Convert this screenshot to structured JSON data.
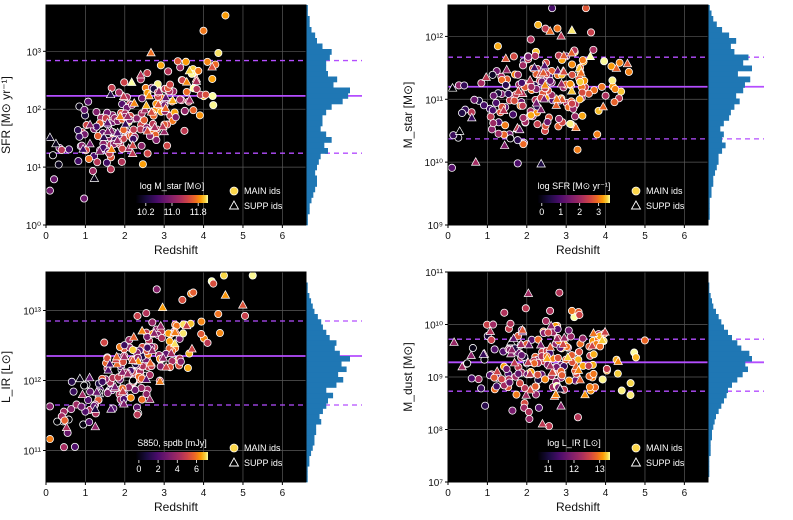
{
  "figure_title": "",
  "colors": {
    "background": "#000000",
    "grid": "#5a5a5a",
    "median_line": "#b44dff",
    "hist_fill": "#1f77b4",
    "marker_edge": "#ffffff"
  },
  "legend": {
    "main": "MAIN ids",
    "supp": "SUPP ids"
  },
  "chart_data": [
    {
      "type": "scatter",
      "id": "sfr",
      "xlabel": "Redshift",
      "ylabel": "SFR [M⊙ yr⁻¹]",
      "xlim": [
        0,
        6.6
      ],
      "ylim_log10": [
        0,
        3.8
      ],
      "x_ticks": [
        0,
        1,
        2,
        3,
        4,
        5,
        6
      ],
      "x_tick_labels": [
        "0",
        "1",
        "2",
        "3",
        "4",
        "5",
        "6"
      ],
      "y_ticks_log10": [
        0,
        1,
        2,
        3
      ],
      "y_tick_labels": [
        "10⁰",
        "10¹",
        "10²",
        "10³"
      ],
      "median_log10": 2.23,
      "p16_log10": 1.24,
      "p84_log10": 2.84,
      "colorbar": {
        "label": "log M_star [M⊙]",
        "range": [
          9.9,
          12.1
        ],
        "ticks": [
          10.2,
          11.0,
          11.8
        ],
        "tick_labels": [
          "10.2",
          "11.0",
          "11.8"
        ],
        "loc": "bottom-center"
      },
      "legend_loc": "bottom-right",
      "seed": 11,
      "n_main": 175,
      "n_supp": 45,
      "x_center": 2.3,
      "relation": {
        "a": 1.2,
        "b": 0.36,
        "sigma": 0.32
      },
      "hist_counts": [
        1,
        1,
        2,
        2,
        3,
        4,
        5,
        6,
        6,
        5,
        6,
        7,
        8,
        12,
        10,
        14,
        11,
        8,
        9,
        9,
        11,
        14,
        20,
        23,
        24,
        15,
        17,
        12,
        11,
        11,
        13,
        14,
        9,
        6,
        5,
        3,
        2,
        2,
        1,
        1
      ]
    },
    {
      "type": "scatter",
      "id": "mstar",
      "xlabel": "Redshift",
      "ylabel": "M_star [M⊙]",
      "xlim": [
        0,
        6.6
      ],
      "ylim_log10": [
        9,
        12.5
      ],
      "x_ticks": [
        0,
        1,
        2,
        3,
        4,
        5,
        6
      ],
      "x_tick_labels": [
        "0",
        "1",
        "2",
        "3",
        "4",
        "5",
        "6"
      ],
      "y_ticks_log10": [
        9,
        10,
        11,
        12
      ],
      "y_tick_labels": [
        "10⁹",
        "10¹⁰",
        "10¹¹",
        "10¹²"
      ],
      "median_log10": 11.2,
      "p16_log10": 10.37,
      "p84_log10": 11.67,
      "colorbar": {
        "label": "log SFR [M⊙ yr⁻¹]",
        "range": [
          -0.2,
          3.6
        ],
        "ticks": [
          0,
          1,
          2,
          3
        ],
        "tick_labels": [
          "0",
          "1",
          "2",
          "3"
        ],
        "loc": "bottom-center"
      },
      "legend_loc": "bottom-right",
      "seed": 23,
      "n_main": 175,
      "n_supp": 45,
      "x_center": 2.3,
      "relation": {
        "a": 10.9,
        "b": 0.12,
        "sigma": 0.42
      },
      "hist_counts": [
        0,
        1,
        1,
        1,
        1,
        2,
        2,
        3,
        3,
        4,
        5,
        6,
        6,
        8,
        10,
        8,
        9,
        7,
        9,
        12,
        13,
        15,
        18,
        16,
        20,
        21,
        24,
        17,
        25,
        20,
        23,
        15,
        13,
        16,
        12,
        8,
        5,
        3,
        2,
        1
      ]
    },
    {
      "type": "scatter",
      "id": "lir",
      "xlabel": "Redshift",
      "ylabel": "L_IR [L⊙]",
      "xlim": [
        0,
        6.6
      ],
      "ylim_log10": [
        10.55,
        13.55
      ],
      "x_ticks": [
        0,
        1,
        2,
        3,
        4,
        5,
        6
      ],
      "x_tick_labels": [
        "0",
        "1",
        "2",
        "3",
        "4",
        "5",
        "6"
      ],
      "y_ticks_log10": [
        11,
        12,
        13
      ],
      "y_tick_labels": [
        "10¹¹",
        "10¹²",
        "10¹³"
      ],
      "median_log10": 12.35,
      "p16_log10": 11.65,
      "p84_log10": 12.85,
      "colorbar": {
        "label": "S850, spdb [mJy]",
        "range": [
          -0.3,
          7.2
        ],
        "ticks": [
          0,
          2,
          4,
          6
        ],
        "tick_labels": [
          "0",
          "2",
          "4",
          "6"
        ],
        "loc": "bottom-center"
      },
      "legend_loc": "bottom-right",
      "seed": 37,
      "n_main": 175,
      "n_supp": 45,
      "x_center": 2.3,
      "relation": {
        "a": 11.55,
        "b": 0.38,
        "sigma": 0.3
      },
      "hist_counts": [
        1,
        1,
        1,
        2,
        2,
        3,
        4,
        5,
        5,
        6,
        6,
        9,
        8,
        10,
        12,
        13,
        16,
        12,
        18,
        22,
        19,
        24,
        21,
        26,
        20,
        17,
        18,
        14,
        12,
        10,
        9,
        7,
        5,
        4,
        3,
        2,
        1,
        1,
        0,
        0
      ]
    },
    {
      "type": "scatter",
      "id": "mdust",
      "xlabel": "Redshift",
      "ylabel": "M_dust [M⊙]",
      "xlim": [
        0,
        6.6
      ],
      "ylim_log10": [
        7,
        11
      ],
      "x_ticks": [
        0,
        1,
        2,
        3,
        4,
        5,
        6
      ],
      "x_tick_labels": [
        "0",
        "1",
        "2",
        "3",
        "4",
        "5",
        "6"
      ],
      "y_ticks_log10": [
        7,
        8,
        9,
        10,
        11
      ],
      "y_tick_labels": [
        "10⁷",
        "10⁸",
        "10⁹",
        "10¹⁰",
        "10¹¹"
      ],
      "median_log10": 9.28,
      "p16_log10": 8.73,
      "p84_log10": 9.72,
      "colorbar": {
        "label": "log L_IR [L⊙]",
        "range": [
          10.6,
          13.4
        ],
        "ticks": [
          11,
          12,
          13
        ],
        "tick_labels": [
          "11",
          "12",
          "13"
        ],
        "loc": "bottom-center"
      },
      "legend_loc": "bottom-right",
      "seed": 51,
      "n_main": 175,
      "n_supp": 45,
      "x_center": 2.3,
      "relation": {
        "a": 9.25,
        "b": 0.02,
        "sigma": 0.45
      },
      "hist_counts": [
        0,
        1,
        1,
        1,
        1,
        2,
        2,
        2,
        3,
        3,
        4,
        5,
        6,
        8,
        10,
        12,
        14,
        15,
        18,
        22,
        26,
        30,
        28,
        33,
        31,
        25,
        22,
        18,
        15,
        12,
        10,
        8,
        6,
        4,
        3,
        2,
        1,
        1,
        0,
        0
      ]
    }
  ]
}
